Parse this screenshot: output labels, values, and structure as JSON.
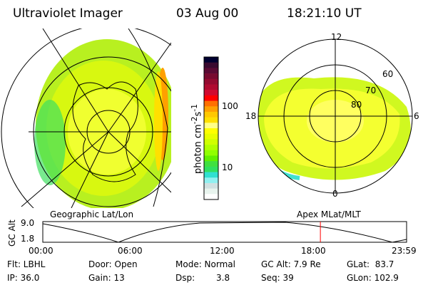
{
  "header": {
    "title": "Ultraviolet Imager",
    "date": "03 Aug 00",
    "time": "18:21:10 UT"
  },
  "colorbar": {
    "label": "photon cm",
    "exp1": "-2",
    "s": "s",
    "exp2": "-1",
    "ticks": [
      "100",
      "10"
    ],
    "colors": [
      "#000030",
      "#3a0a30",
      "#5a0a34",
      "#780a30",
      "#940a30",
      "#b00a30",
      "#d00a30",
      "#ff0000",
      "#ff7000",
      "#ffa000",
      "#ffc800",
      "#ffe000",
      "#ffff88",
      "#ffff00",
      "#e8ff00",
      "#d0ff00",
      "#b0ff00",
      "#90ff00",
      "#60f000",
      "#40e040",
      "#30e060",
      "#30e0d0",
      "#90f0f0",
      "#d0e0e0",
      "#e8f4ee",
      "#ffffff"
    ]
  },
  "left_map": {
    "caption": "Geographic Lat/Lon"
  },
  "right_map": {
    "caption": "Apex MLat/MLT",
    "mlt_labels": [
      "12",
      "18",
      "6",
      "0"
    ],
    "lat_labels": [
      "60",
      "70",
      "80"
    ]
  },
  "alt_plot": {
    "ylabel": "GC Alt",
    "yticks": [
      "9.0",
      "1.8"
    ],
    "xticks": [
      "00:00",
      "06:00",
      "12:00",
      "18:00",
      "23:59"
    ],
    "current_time_fraction": 0.763,
    "marker_color": "#ff0000"
  },
  "status": {
    "filter": "Flt: LBHL",
    "ip": "IP: 36.0",
    "door": "Door: Open",
    "gain": "Gain: 13",
    "mode": "Mode: Normal",
    "dsp_label": "Dsp:",
    "dsp_value": "3.8",
    "gc_alt": "GC Alt: 7.9 Re",
    "seq": "Seq: 39",
    "glat": "GLat:  83.7",
    "glon": "GLon: 102.9"
  }
}
